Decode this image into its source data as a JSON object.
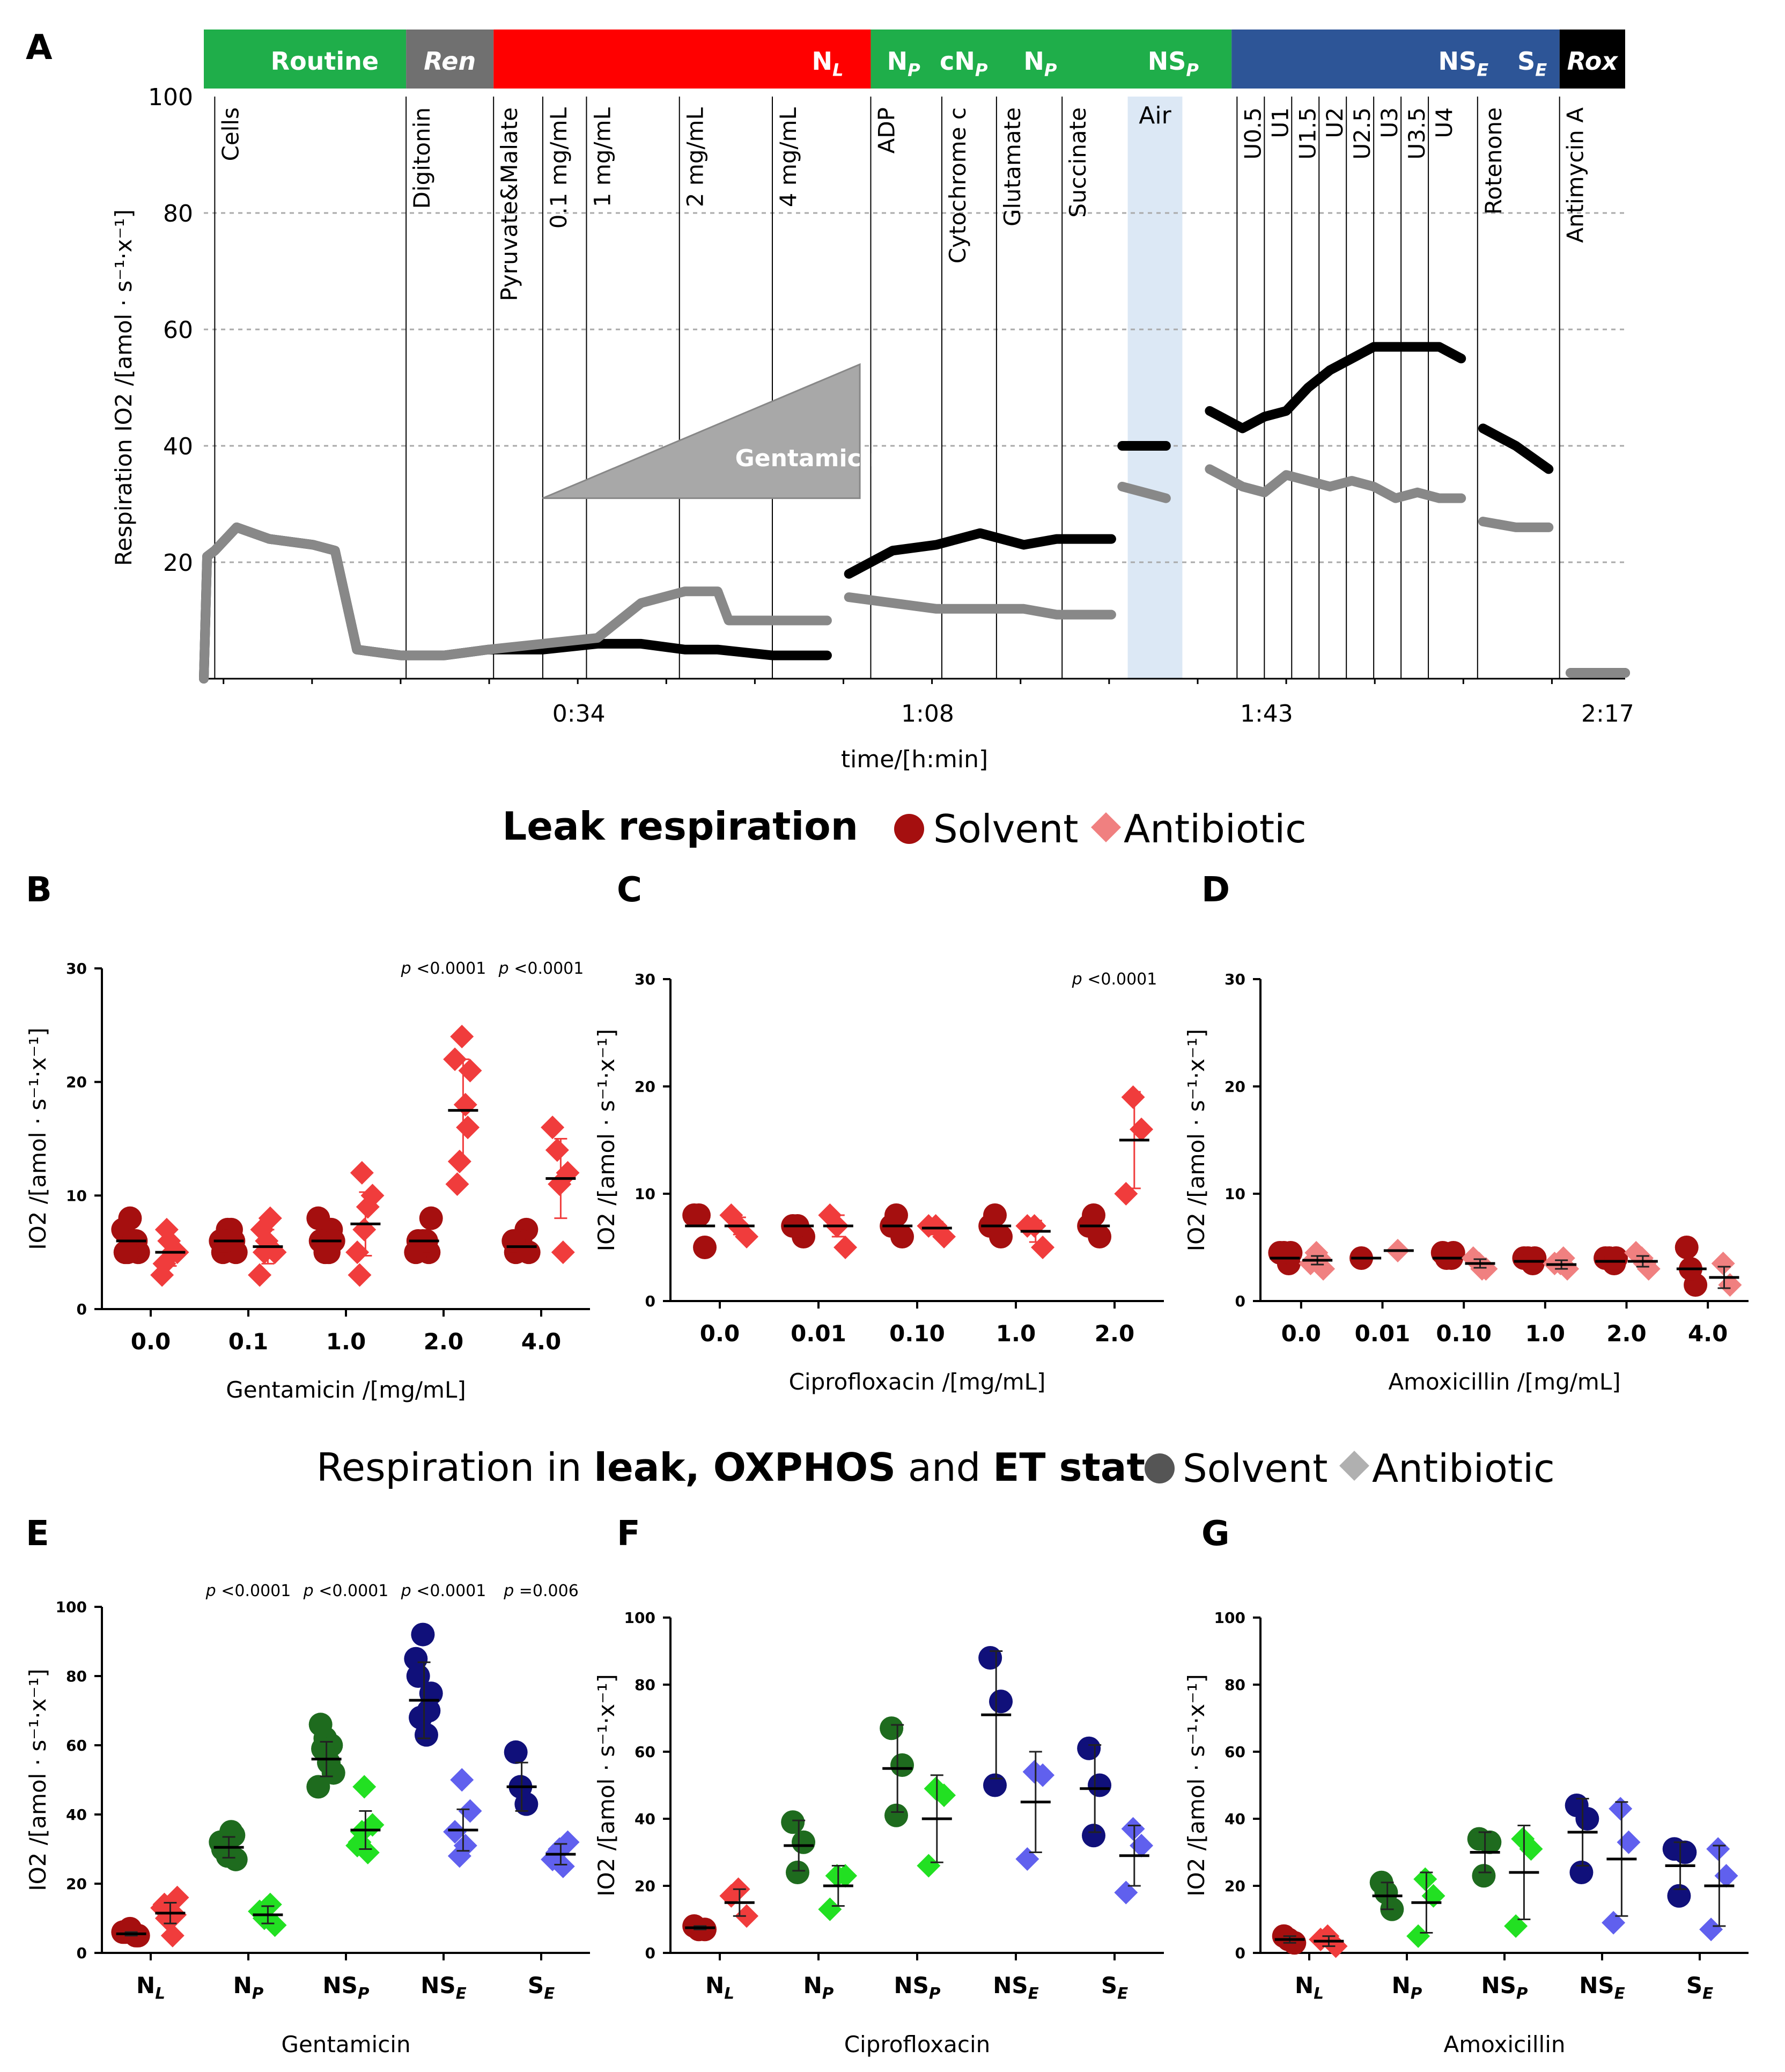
{
  "figure": {
    "panel_letters": [
      "A",
      "B",
      "C",
      "D",
      "E",
      "F",
      "G"
    ],
    "legend_leak": {
      "title": "Leak respiration",
      "solvent": "Solvent",
      "antibiotic": "Antibiotic"
    },
    "legend_states": {
      "pre": "Respiration in ",
      "leak": "leak",
      "sep1": ", ",
      "oxphos": "OXPHOS",
      "sep2": " and ",
      "et": "ET state",
      "solvent": "Solvent",
      "antibiotic": "Antibiotic"
    },
    "colors": {
      "routine": "#1fae4a",
      "ren": "#707070",
      "nl": "#ff0000",
      "np": "#1fae4a",
      "nse": "#2d5597",
      "rox": "#000000",
      "air": "#dce8f5",
      "dark_red": "#a50f0f",
      "light_red": "#f03c3c",
      "pink": "#f08080",
      "dark_green": "#1e6b1e",
      "light_green": "#22e022",
      "dark_blue": "#10107a",
      "light_blue": "#6060ee",
      "gray_trace": "#888888"
    }
  },
  "chart_data": [
    {
      "panel": "A",
      "type": "line",
      "ylabel": "Respiration IO2 /[amol · s⁻¹·x⁻¹]",
      "xlabel": "time/[h:min]",
      "ylim": [
        0,
        100
      ],
      "yticks": [
        "100",
        "80",
        "60",
        "40",
        "20"
      ],
      "xticks": [
        "0:34",
        "1:08",
        "1:43",
        "2:17"
      ],
      "states": [
        {
          "label": "Routine",
          "sub": ""
        },
        {
          "label": "Ren",
          "sub": ""
        },
        {
          "label": "N",
          "sub": "L"
        },
        {
          "label": "N",
          "sub": "P"
        },
        {
          "label": "cN",
          "sub": "P"
        },
        {
          "label": "N",
          "sub": "P"
        },
        {
          "label": "NS",
          "sub": "P"
        },
        {
          "label": "NS",
          "sub": "E"
        },
        {
          "label": "S",
          "sub": "E"
        },
        {
          "label": "Rox",
          "sub": ""
        }
      ],
      "events": [
        "Cells",
        "Digitonin",
        "Pyruvate&Malate",
        "0.1 mg/mL",
        "1 mg/mL",
        "2 mg/mL",
        "4 mg/mL",
        "ADP",
        "Cytochrome c",
        "Glutamate",
        "Succinate",
        "U0.5",
        "U1",
        "U1.5",
        "U2",
        "U2.5",
        "U3",
        "U3.5",
        "U4",
        "Rotenone",
        "Antimycin A"
      ],
      "air_label": "Air",
      "gentamicin_label": "Gentamicin",
      "series": [
        {
          "name": "Solvent (black)",
          "segments": [
            [
              [
                0,
                0
              ],
              [
                0.3,
                21
              ],
              [
                1,
                22
              ],
              [
                3,
                26
              ],
              [
                6,
                24
              ],
              [
                10,
                23
              ],
              [
                12,
                22
              ],
              [
                14,
                5
              ],
              [
                18,
                4
              ],
              [
                20,
                4
              ],
              [
                22,
                4
              ],
              [
                26,
                5
              ],
              [
                31,
                5
              ],
              [
                36,
                6
              ],
              [
                40,
                6
              ],
              [
                44,
                5
              ],
              [
                47,
                5
              ],
              [
                52,
                4
              ],
              [
                57,
                4
              ]
            ],
            [
              [
                59,
                18
              ],
              [
                63,
                22
              ],
              [
                67,
                23
              ],
              [
                69,
                24
              ],
              [
                71,
                25
              ],
              [
                75,
                23
              ],
              [
                78,
                24
              ],
              [
                80,
                24
              ],
              [
                83,
                24
              ]
            ],
            [
              [
                84,
                40
              ],
              [
                88,
                40
              ]
            ],
            [
              [
                92,
                46
              ],
              [
                95,
                43
              ],
              [
                97,
                45
              ],
              [
                99,
                46
              ],
              [
                101,
                50
              ],
              [
                103,
                53
              ],
              [
                105,
                55
              ],
              [
                107,
                57
              ],
              [
                109,
                57
              ],
              [
                111,
                57
              ],
              [
                113,
                57
              ],
              [
                115,
                55
              ]
            ],
            [
              [
                117,
                43
              ],
              [
                120,
                40
              ],
              [
                123,
                36
              ]
            ],
            [
              [
                125,
                1
              ],
              [
                130,
                1
              ]
            ]
          ]
        },
        {
          "name": "Antibiotic (gray)",
          "segments": [
            [
              [
                0,
                0
              ],
              [
                0.3,
                21
              ],
              [
                1,
                22
              ],
              [
                3,
                26
              ],
              [
                6,
                24
              ],
              [
                10,
                23
              ],
              [
                12,
                22
              ],
              [
                14,
                5
              ],
              [
                18,
                4
              ],
              [
                20,
                4
              ],
              [
                22,
                4
              ],
              [
                26,
                5
              ],
              [
                31,
                6
              ],
              [
                36,
                7
              ],
              [
                40,
                13
              ],
              [
                44,
                15
              ],
              [
                47,
                15
              ],
              [
                48,
                10
              ],
              [
                52,
                10
              ],
              [
                57,
                10
              ]
            ],
            [
              [
                59,
                14
              ],
              [
                63,
                13
              ],
              [
                67,
                12
              ],
              [
                69,
                12
              ],
              [
                71,
                12
              ],
              [
                75,
                12
              ],
              [
                78,
                11
              ],
              [
                80,
                11
              ],
              [
                83,
                11
              ]
            ],
            [
              [
                84,
                33
              ],
              [
                88,
                31
              ]
            ],
            [
              [
                92,
                36
              ],
              [
                95,
                33
              ],
              [
                97,
                32
              ],
              [
                99,
                35
              ],
              [
                101,
                34
              ],
              [
                103,
                33
              ],
              [
                105,
                34
              ],
              [
                107,
                33
              ],
              [
                109,
                31
              ],
              [
                111,
                32
              ],
              [
                113,
                31
              ],
              [
                115,
                31
              ]
            ],
            [
              [
                117,
                27
              ],
              [
                120,
                26
              ],
              [
                123,
                26
              ]
            ],
            [
              [
                125,
                1
              ],
              [
                130,
                1
              ]
            ]
          ]
        }
      ]
    },
    {
      "panel": "B",
      "type": "scatter",
      "xlabel": "Gentamicin /[mg/mL]",
      "ylabel": "IO2 /[amol · s⁻¹·x⁻¹]",
      "ylim": [
        0,
        30
      ],
      "yticks": [
        "0",
        "10",
        "20",
        "30"
      ],
      "categories": [
        "0.0",
        "0.1",
        "1.0",
        "2.0",
        "4.0"
      ],
      "solvent": [
        [
          5,
          6,
          8,
          5,
          7,
          6,
          5
        ],
        [
          5,
          6,
          7,
          5,
          6,
          7,
          6
        ],
        [
          6,
          7,
          5,
          6,
          8,
          5
        ],
        [
          6,
          5,
          6,
          8,
          5,
          6
        ],
        [
          5,
          7,
          6,
          5,
          6
        ]
      ],
      "antibiotic": [
        [
          6,
          5,
          3,
          5,
          7,
          4
        ],
        [
          6,
          5,
          3,
          8,
          5,
          7
        ],
        [
          7,
          10,
          5,
          9,
          12,
          3
        ],
        [
          24,
          21,
          22,
          18,
          13,
          11,
          16
        ],
        [
          11,
          12,
          16,
          5,
          14
        ]
      ],
      "solvent_mean": [
        6,
        6,
        6,
        6,
        5.5
      ],
      "antibiotic_mean": [
        5,
        5.5,
        7.5,
        17.5,
        11.5
      ],
      "antibiotic_sd": [
        1.2,
        1.5,
        2.8,
        4.5,
        3.5
      ],
      "pvalues": [
        "",
        "",
        "",
        "p <0.0001",
        "p <0.0001"
      ]
    },
    {
      "panel": "C",
      "type": "scatter",
      "xlabel": "Ciprofloxacin /[mg/mL]",
      "ylabel": "IO2 /[amol · s⁻¹·x⁻¹]",
      "ylim": [
        0,
        30
      ],
      "yticks": [
        "0",
        "10",
        "20",
        "30"
      ],
      "categories": [
        "0.0",
        "0.01",
        "0.10",
        "1.0",
        "2.0"
      ],
      "solvent": [
        [
          8,
          5,
          8
        ],
        [
          7,
          6,
          7
        ],
        [
          7,
          6,
          8
        ],
        [
          7,
          6,
          8
        ],
        [
          7,
          6,
          8
        ]
      ],
      "antibiotic": [
        [
          7,
          6,
          8
        ],
        [
          7,
          5,
          8
        ],
        [
          7,
          6,
          7
        ],
        [
          7,
          5,
          7
        ],
        [
          19,
          16,
          10
        ]
      ],
      "solvent_mean": [
        7,
        7,
        7,
        7,
        7
      ],
      "antibiotic_mean": [
        7,
        7,
        6.8,
        6.5,
        15
      ],
      "antibiotic_sd": [
        0.8,
        1,
        0.6,
        1,
        4.5
      ],
      "pvalues": [
        "",
        "",
        "",
        "",
        "p <0.0001"
      ]
    },
    {
      "panel": "D",
      "type": "scatter",
      "xlabel": "Amoxicillin /[mg/mL]",
      "ylabel": "IO2 /[amol · s⁻¹·x⁻¹]",
      "ylim": [
        0,
        30
      ],
      "yticks": [
        "0",
        "10",
        "20",
        "30"
      ],
      "categories": [
        "0.0",
        "0.01",
        "0.10",
        "1.0",
        "2.0",
        "4.0"
      ],
      "solvent": [
        [
          4.5,
          3.5,
          4.5,
          4.5
        ],
        [
          4
        ],
        [
          4.5,
          4,
          4,
          4.5
        ],
        [
          4,
          3.5,
          4,
          4
        ],
        [
          4,
          3.5,
          4,
          4
        ],
        [
          5,
          1.5,
          3
        ]
      ],
      "antibiotic": [
        [
          4.5,
          3,
          3.5,
          4
        ],
        [
          4.7
        ],
        [
          3.5,
          3,
          4,
          3
        ],
        [
          3.5,
          3,
          3.5,
          4
        ],
        [
          4,
          3,
          4.5,
          3.5
        ],
        [
          3.5,
          1.5
        ]
      ],
      "solvent_mean": [
        4,
        4,
        4,
        3.7,
        3.7,
        3
      ],
      "antibiotic_mean": [
        3.8,
        4.7,
        3.5,
        3.4,
        3.7,
        2.2
      ],
      "antibiotic_sd": [
        0.4,
        0,
        0.4,
        0.4,
        0.5,
        1
      ],
      "pvalues": [
        "",
        "",
        "",
        "",
        "",
        ""
      ]
    },
    {
      "panel": "E",
      "type": "scatter",
      "xlabel": "Gentamicin",
      "ylabel": "IO2 /[amol · s⁻¹·x⁻¹]",
      "ylim": [
        0,
        100
      ],
      "yticks": [
        "0",
        "20",
        "40",
        "60",
        "80",
        "100"
      ],
      "categories": [
        "NL",
        "NP",
        "NSP",
        "NSE",
        "SE"
      ],
      "solvent": [
        [
          6,
          5,
          7,
          5,
          6
        ],
        [
          30,
          34,
          28,
          27,
          32,
          35
        ],
        [
          66,
          60,
          62,
          52,
          48,
          55,
          59
        ],
        [
          80,
          70,
          92,
          75,
          85,
          63,
          68
        ],
        [
          58,
          43,
          48
        ]
      ],
      "antibiotic": [
        [
          12,
          16,
          13,
          5,
          10,
          14,
          11
        ],
        [
          13,
          8,
          12,
          14,
          10
        ],
        [
          48,
          37,
          31,
          29,
          35,
          32
        ],
        [
          50,
          41,
          35,
          31,
          28
        ],
        [
          30,
          32,
          27,
          25,
          29
        ]
      ],
      "solvent_mean": [
        5.5,
        30.5,
        56,
        73,
        48
      ],
      "antibiotic_mean": [
        11.5,
        11,
        35.5,
        35.5,
        28.5
      ],
      "solvent_sd": [
        0.5,
        3,
        5,
        11,
        7
      ],
      "antibiotic_sd": [
        3,
        2.5,
        5.5,
        6,
        3
      ],
      "pvalues": [
        "",
        "p <0.0001",
        "p <0.0001",
        "p <0.0001",
        "p =0.006"
      ]
    },
    {
      "panel": "F",
      "type": "scatter",
      "xlabel": "Ciprofloxacin",
      "ylabel": "IO2 /[amol · s⁻¹·x⁻¹]",
      "ylim": [
        0,
        100
      ],
      "yticks": [
        "0",
        "20",
        "40",
        "60",
        "80",
        "100"
      ],
      "categories": [
        "NL",
        "NP",
        "NSP",
        "NSE",
        "SE"
      ],
      "solvent": [
        [
          8,
          7,
          7
        ],
        [
          39,
          33,
          24
        ],
        [
          67,
          56,
          41
        ],
        [
          88,
          75,
          50
        ],
        [
          61,
          50,
          35
        ]
      ],
      "antibiotic": [
        [
          19,
          11,
          17
        ],
        [
          23,
          23,
          13
        ],
        [
          49,
          47,
          26
        ],
        [
          54,
          53,
          28
        ],
        [
          37,
          32,
          18
        ]
      ],
      "solvent_mean": [
        7.5,
        32,
        55,
        71,
        49
      ],
      "antibiotic_mean": [
        15,
        20,
        40,
        45,
        29
      ],
      "solvent_sd": [
        0.5,
        7.5,
        13,
        19,
        13
      ],
      "antibiotic_sd": [
        4,
        6,
        13,
        15,
        9
      ],
      "pvalues": [
        "",
        "",
        "",
        "",
        ""
      ]
    },
    {
      "panel": "G",
      "type": "scatter",
      "xlabel": "Amoxicillin",
      "ylabel": "IO2 /[amol · s⁻¹·x⁻¹]",
      "ylim": [
        0,
        100
      ],
      "yticks": [
        "0",
        "20",
        "40",
        "60",
        "80",
        "100"
      ],
      "categories": [
        "NL",
        "NP",
        "NSP",
        "NSE",
        "SE"
      ],
      "solvent": [
        [
          5,
          3,
          4
        ],
        [
          21,
          13,
          18
        ],
        [
          34,
          33,
          23
        ],
        [
          44,
          40,
          24
        ],
        [
          31,
          30,
          17
        ]
      ],
      "antibiotic": [
        [
          5,
          2,
          4
        ],
        [
          22,
          17,
          5
        ],
        [
          34,
          31,
          8
        ],
        [
          43,
          33,
          9
        ],
        [
          31,
          23,
          7
        ]
      ],
      "solvent_mean": [
        4,
        17,
        30,
        36,
        26
      ],
      "antibiotic_mean": [
        3.5,
        15,
        24,
        28,
        20
      ],
      "solvent_sd": [
        1,
        4,
        6,
        10,
        7
      ],
      "antibiotic_sd": [
        1.5,
        9,
        14,
        17,
        12
      ],
      "pvalues": [
        "",
        "",
        "",
        "",
        ""
      ]
    }
  ]
}
